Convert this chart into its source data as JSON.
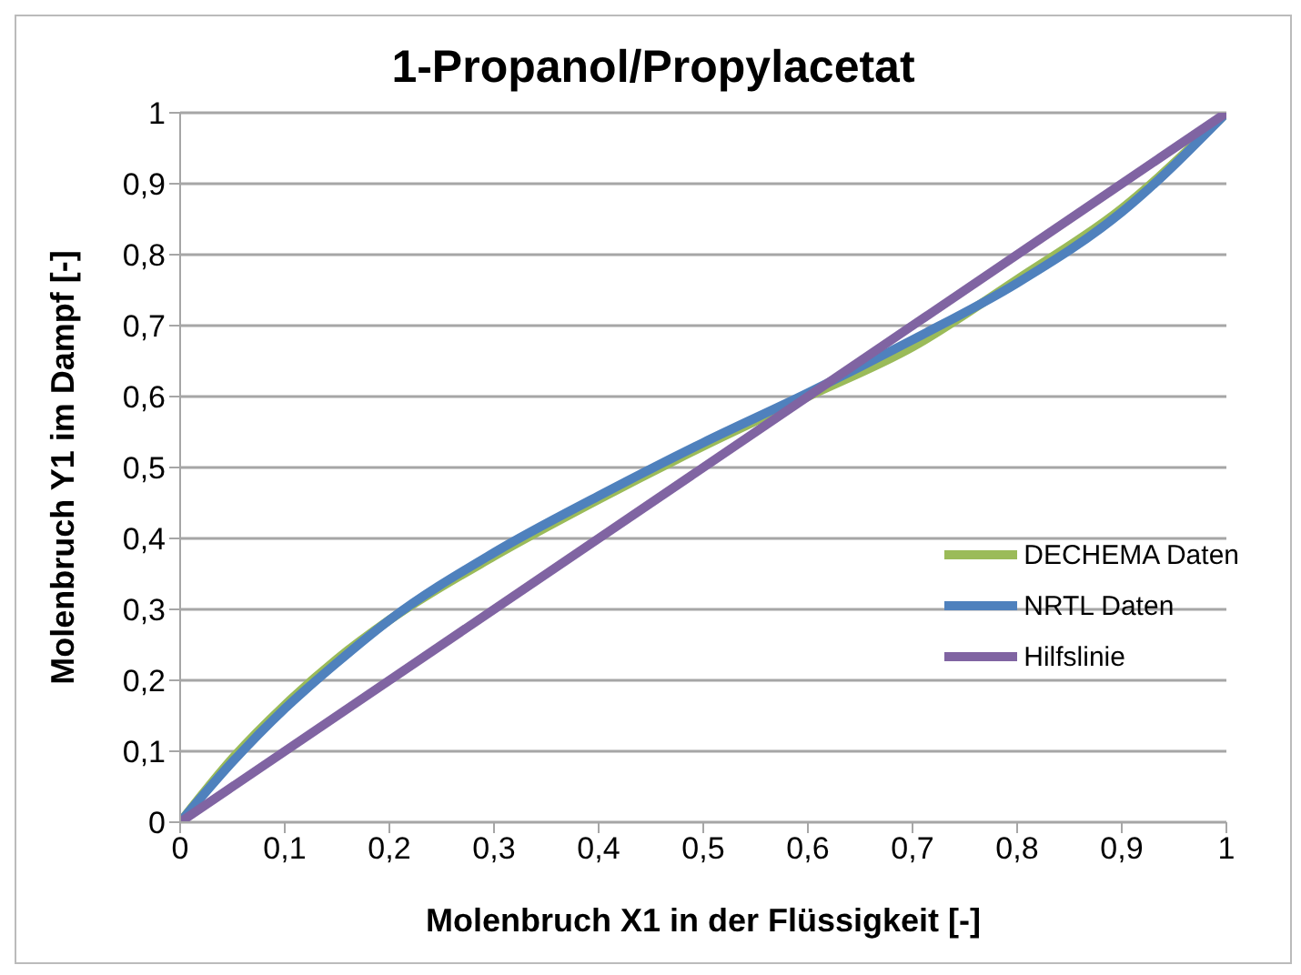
{
  "chart_data": {
    "type": "line",
    "title": "1-Propanol/Propylacetat",
    "xlabel": "Molenbruch X1 in der Flüssigkeit [-]",
    "ylabel": "Molenbruch Y1 im Dampf [-]",
    "xlim": [
      0,
      1
    ],
    "ylim": [
      0,
      1
    ],
    "xticks": [
      0,
      {
        "value": 0.1,
        "label": "0,1"
      },
      {
        "value": 0.2,
        "label": "0,2"
      },
      {
        "value": 0.3,
        "label": "0,3"
      },
      {
        "value": 0.4,
        "label": "0,4"
      },
      {
        "value": 0.5,
        "label": "0,5"
      },
      {
        "value": 0.6,
        "label": "0,6"
      },
      {
        "value": 0.7,
        "label": "0,7"
      },
      {
        "value": 0.8,
        "label": "0,8"
      },
      {
        "value": 0.9,
        "label": "0,9"
      },
      1
    ],
    "yticks": [
      0,
      {
        "value": 0.1,
        "label": "0,1"
      },
      {
        "value": 0.2,
        "label": "0,2"
      },
      {
        "value": 0.3,
        "label": "0,3"
      },
      {
        "value": 0.4,
        "label": "0,4"
      },
      {
        "value": 0.5,
        "label": "0,5"
      },
      {
        "value": 0.6,
        "label": "0,6"
      },
      {
        "value": 0.7,
        "label": "0,7"
      },
      {
        "value": 0.8,
        "label": "0,8"
      },
      {
        "value": 0.9,
        "label": "0,9"
      },
      1
    ],
    "grid": "y",
    "legend": "right",
    "marker": "none",
    "line_style": "solid",
    "series": [
      {
        "name": "DECHEMA Daten",
        "color": "#9bbb59",
        "x": [
          0,
          0.05,
          0.1,
          0.15,
          0.2,
          0.3,
          0.4,
          0.5,
          0.6,
          0.7,
          0.8,
          0.9,
          1
        ],
        "values": [
          0,
          0.09,
          0.165,
          0.23,
          0.285,
          0.375,
          0.455,
          0.53,
          0.6,
          0.67,
          0.765,
          0.865,
          1
        ]
      },
      {
        "name": "NRTL Daten",
        "color": "#4f81bd",
        "x": [
          0,
          0.05,
          0.1,
          0.15,
          0.2,
          0.3,
          0.4,
          0.5,
          0.6,
          0.7,
          0.8,
          0.9,
          1
        ],
        "values": [
          0,
          0.085,
          0.16,
          0.225,
          0.285,
          0.38,
          0.46,
          0.535,
          0.605,
          0.68,
          0.76,
          0.86,
          1
        ]
      },
      {
        "name": "Hilfslinie",
        "color": "#8064a2",
        "x": [
          0,
          1
        ],
        "values": [
          0,
          1
        ]
      }
    ]
  }
}
